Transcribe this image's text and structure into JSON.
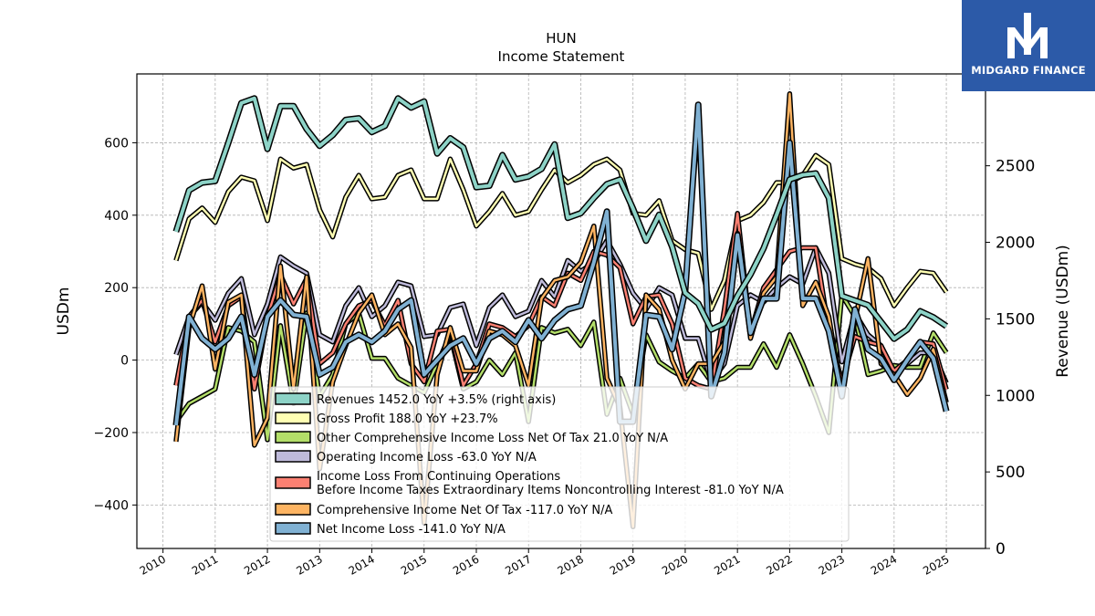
{
  "header": {
    "title": "HUN",
    "subtitle": "Income Statement"
  },
  "logo": {
    "text": "MIDGARD FINANCE"
  },
  "colors": {
    "revenues": "#8dd3c7",
    "gross_profit": "#ffffb3",
    "other_ci": "#b3de69",
    "operating": "#bebada",
    "income_before_tax": "#fb8072",
    "comprehensive": "#fdb462",
    "net_income": "#80b1d3",
    "brand": "#2c5aa8"
  },
  "chart_data": {
    "type": "line",
    "title": "HUN",
    "subtitle": "Income Statement",
    "ylabel": "USDm",
    "y2label": "Revenue (USDm)",
    "ylim": [
      -520,
      790
    ],
    "y2lim": [
      0,
      3100
    ],
    "xlim": [
      2009.5,
      2025.75
    ],
    "yticks": [
      -400,
      -200,
      0,
      200,
      400,
      600
    ],
    "y2ticks": [
      0,
      500,
      1000,
      1500,
      2000,
      2500
    ],
    "xticks": [
      "2010",
      "2011",
      "2012",
      "2013",
      "2014",
      "2015",
      "2016",
      "2017",
      "2018",
      "2019",
      "2020",
      "2021",
      "2022",
      "2023",
      "2024",
      "2025"
    ],
    "grid": true,
    "legend_position": "lower-center",
    "x": [
      2010.25,
      2010.5,
      2010.75,
      2011.0,
      2011.25,
      2011.5,
      2011.75,
      2012.0,
      2012.25,
      2012.5,
      2012.75,
      2013.0,
      2013.25,
      2013.5,
      2013.75,
      2014.0,
      2014.25,
      2014.5,
      2014.75,
      2015.0,
      2015.25,
      2015.5,
      2015.75,
      2016.0,
      2016.25,
      2016.5,
      2016.75,
      2017.0,
      2017.25,
      2017.5,
      2017.75,
      2018.0,
      2018.25,
      2018.5,
      2018.75,
      2019.0,
      2019.25,
      2019.5,
      2019.75,
      2020.0,
      2020.25,
      2020.5,
      2020.75,
      2021.0,
      2021.25,
      2021.5,
      2021.75,
      2022.0,
      2022.25,
      2022.5,
      2022.75,
      2023.0,
      2023.25,
      2023.5,
      2023.75,
      2024.0,
      2024.25,
      2024.5,
      2024.75,
      2025.0
    ],
    "series": [
      {
        "name": "Revenues  1452.0 YoY +3.5% (right axis)",
        "axis": "right",
        "color": "#8dd3c7",
        "width": 4,
        "values": [
          2070,
          2340,
          2390,
          2400,
          2650,
          2910,
          2940,
          2610,
          2890,
          2890,
          2740,
          2630,
          2700,
          2800,
          2810,
          2720,
          2760,
          2940,
          2880,
          2920,
          2580,
          2680,
          2620,
          2360,
          2370,
          2570,
          2410,
          2430,
          2480,
          2640,
          2160,
          2190,
          2290,
          2380,
          2410,
          2220,
          2010,
          2180,
          1970,
          1670,
          1600,
          1430,
          1470,
          1650,
          1790,
          1960,
          2180,
          2410,
          2440,
          2450,
          2290,
          1650,
          1620,
          1590,
          1480,
          1370,
          1430,
          1550,
          1510,
          1452
        ]
      },
      {
        "name": "Gross Profit  188.0 YoY +23.7%",
        "axis": "left",
        "color": "#ffffb3",
        "width": 2.5,
        "values": [
          275,
          390,
          420,
          380,
          465,
          505,
          495,
          385,
          555,
          530,
          540,
          415,
          340,
          450,
          510,
          445,
          450,
          510,
          525,
          445,
          445,
          555,
          470,
          370,
          410,
          460,
          400,
          410,
          470,
          525,
          490,
          510,
          540,
          555,
          525,
          405,
          400,
          440,
          330,
          305,
          295,
          140,
          220,
          385,
          400,
          435,
          490,
          490,
          510,
          565,
          540,
          280,
          265,
          255,
          225,
          150,
          200,
          245,
          240,
          188
        ]
      },
      {
        "name": "Other Comprehensive Income Loss Net Of Tax  21.0 YoY N/A",
        "axis": "left",
        "color": "#b3de69",
        "width": 2.5,
        "values": [
          -170,
          -120,
          -100,
          -80,
          90,
          80,
          50,
          -220,
          95,
          -120,
          130,
          -100,
          -40,
          100,
          130,
          5,
          5,
          -50,
          -70,
          -90,
          -10,
          70,
          -80,
          -60,
          0,
          -40,
          20,
          -170,
          90,
          75,
          85,
          40,
          105,
          -150,
          -50,
          -150,
          70,
          -5,
          -30,
          -50,
          -10,
          -60,
          -50,
          -20,
          -20,
          45,
          -20,
          70,
          -10,
          -100,
          -200,
          180,
          120,
          -40,
          -30,
          -15,
          -20,
          -20,
          75,
          21
        ]
      },
      {
        "name": "Operating Income Loss  -63.0 YoY N/A",
        "axis": "left",
        "color": "#bebada",
        "width": 2.5,
        "values": [
          15,
          120,
          160,
          110,
          185,
          225,
          70,
          155,
          285,
          260,
          240,
          70,
          50,
          150,
          200,
          120,
          150,
          215,
          205,
          65,
          70,
          145,
          155,
          40,
          145,
          180,
          120,
          135,
          220,
          175,
          275,
          245,
          270,
          330,
          265,
          185,
          140,
          200,
          180,
          60,
          60,
          -60,
          -10,
          150,
          180,
          160,
          200,
          230,
          210,
          310,
          240,
          -5,
          130,
          70,
          40,
          -40,
          -10,
          20,
          20,
          -63
        ]
      },
      {
        "name": "Income Loss From Continuing Operations Before Income Taxes Extraordinary Items Noncontrolling Interest  -81.0 YoY N/A",
        "axis": "left",
        "color": "#fb8072",
        "width": 2.5,
        "values": [
          -70,
          120,
          165,
          50,
          150,
          175,
          -80,
          120,
          235,
          155,
          225,
          -10,
          20,
          100,
          150,
          165,
          95,
          165,
          -10,
          -60,
          80,
          85,
          -70,
          -10,
          100,
          90,
          65,
          95,
          175,
          150,
          240,
          220,
          300,
          290,
          255,
          100,
          175,
          180,
          100,
          -50,
          -70,
          -80,
          140,
          405,
          75,
          200,
          250,
          300,
          310,
          310,
          80,
          -60,
          65,
          50,
          40,
          -30,
          0,
          50,
          45,
          -81
        ]
      },
      {
        "name": "Comprehensive Income Net Of Tax  -117.0 YoY N/A",
        "axis": "left",
        "color": "#fdb462",
        "width": 2.5,
        "values": [
          -225,
          90,
          205,
          -25,
          160,
          180,
          -235,
          -160,
          260,
          -80,
          230,
          -300,
          -60,
          40,
          130,
          180,
          70,
          100,
          35,
          -450,
          -40,
          90,
          -30,
          -30,
          80,
          70,
          40,
          -70,
          170,
          220,
          230,
          270,
          370,
          -50,
          -130,
          -460,
          180,
          140,
          0,
          -80,
          -10,
          -10,
          50,
          350,
          60,
          185,
          230,
          735,
          150,
          215,
          120,
          -100,
          110,
          280,
          -10,
          -40,
          -95,
          -50,
          30,
          -117
        ]
      },
      {
        "name": "Net Income Loss  -141.0 YoY N/A",
        "axis": "left",
        "color": "#80b1d3",
        "width": 4,
        "values": [
          -180,
          120,
          60,
          30,
          60,
          120,
          -40,
          120,
          165,
          125,
          120,
          -40,
          -20,
          50,
          70,
          50,
          80,
          140,
          165,
          -40,
          0,
          40,
          60,
          -10,
          60,
          80,
          50,
          110,
          60,
          110,
          140,
          150,
          270,
          410,
          -170,
          -170,
          125,
          120,
          30,
          190,
          705,
          -100,
          20,
          345,
          75,
          170,
          170,
          600,
          170,
          170,
          80,
          -100,
          140,
          30,
          5,
          -55,
          0,
          50,
          5,
          -141
        ]
      }
    ]
  }
}
